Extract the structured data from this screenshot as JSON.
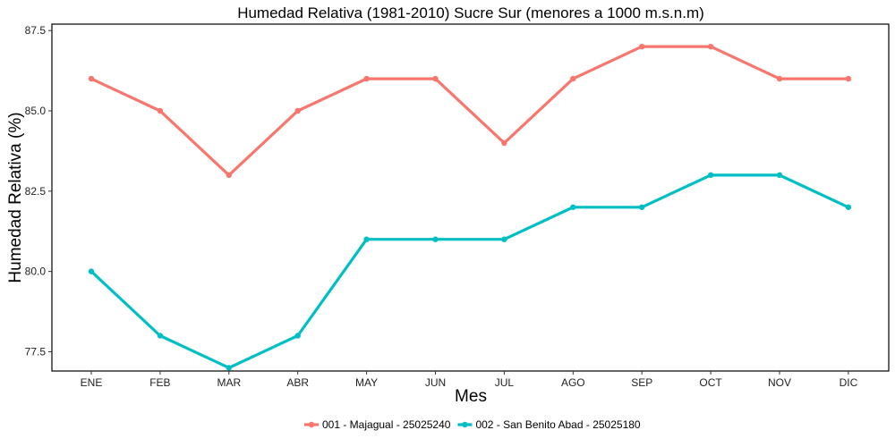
{
  "chart_data": {
    "type": "line",
    "title": "Humedad Relativa (1981-2010) Sucre Sur (menores a 1000 m.s.n.m)",
    "xlabel": "Mes",
    "ylabel": "Humedad Relativa (%)",
    "categories": [
      "ENE",
      "FEB",
      "MAR",
      "ABR",
      "MAY",
      "JUN",
      "JUL",
      "AGO",
      "SEP",
      "OCT",
      "NOV",
      "DIC"
    ],
    "ylim": [
      76.9,
      87.7
    ],
    "yticks": [
      77.5,
      80.0,
      82.5,
      85.0,
      87.5
    ],
    "ytick_labels": [
      "77.5",
      "80.0",
      "82.5",
      "85.0",
      "87.5"
    ],
    "grid": false,
    "legend_position": "bottom",
    "series": [
      {
        "name": "001 - Majagual - 25025240",
        "color": "#F8766D",
        "values": [
          86,
          85,
          83,
          85,
          86,
          86,
          84,
          86,
          87,
          87,
          86,
          86
        ]
      },
      {
        "name": "002 - San Benito Abad - 25025180",
        "color": "#00BFC4",
        "values": [
          80,
          78,
          77,
          78,
          81,
          81,
          81,
          82,
          82,
          83,
          83,
          82
        ]
      }
    ]
  }
}
